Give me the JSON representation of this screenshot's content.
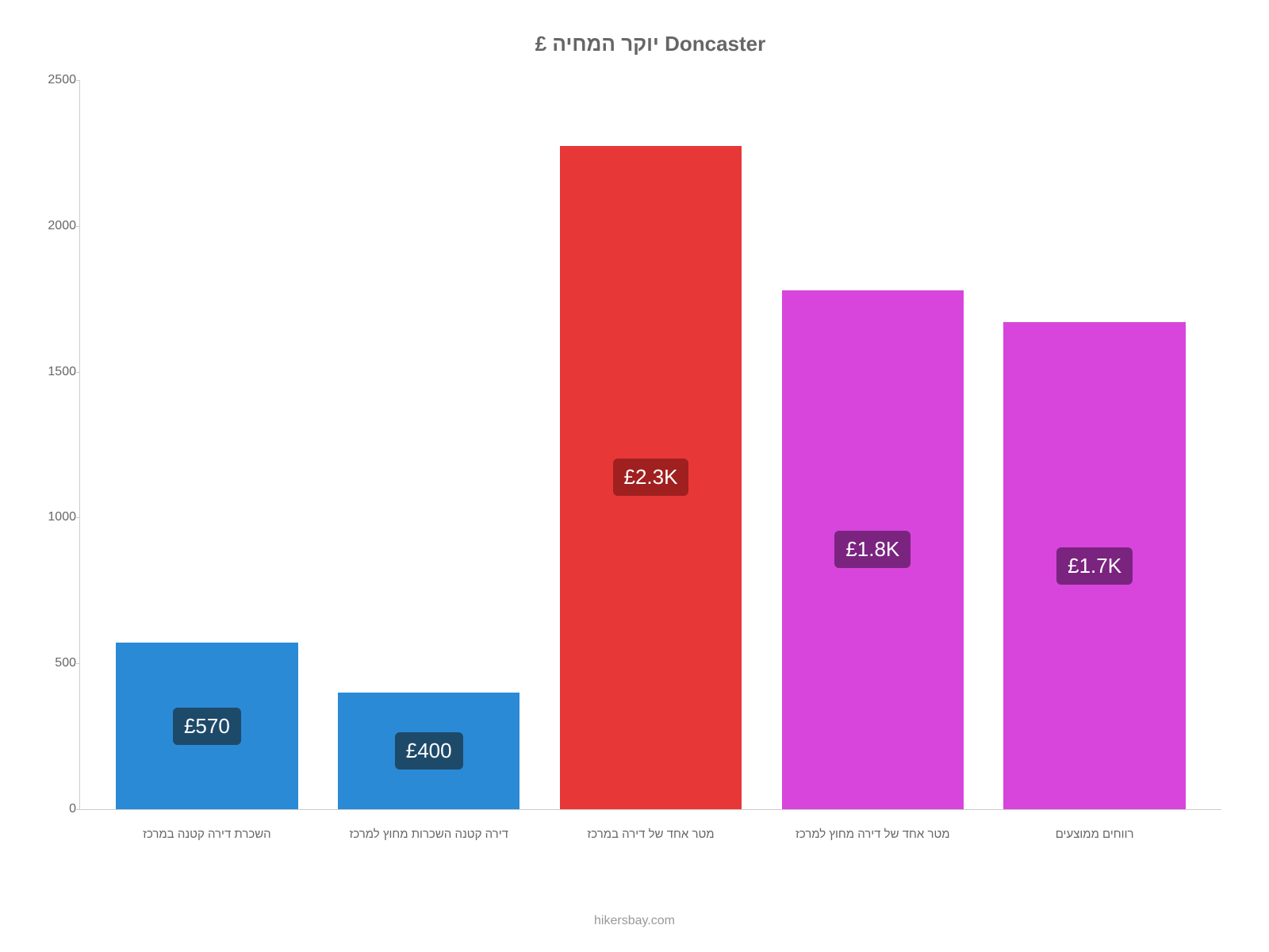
{
  "chart": {
    "type": "bar",
    "title": "£ יוקר המחיה Doncaster",
    "title_fontsize": 26,
    "title_color": "#666666",
    "background_color": "#ffffff",
    "axis_color": "#cccccc",
    "ylim": [
      0,
      2500
    ],
    "ytick_step": 500,
    "yticks": [
      0,
      500,
      1000,
      1500,
      2000,
      2500
    ],
    "ytick_fontsize": 16,
    "ytick_color": "#666666",
    "xlabel_fontsize": 15,
    "xlabel_color": "#666666",
    "bar_width": 0.82,
    "categories": [
      "השכרת דירה קטנה במרכז",
      "דירה קטנה השכרות מחוץ למרכז",
      "מטר אחד של דירה במרכז",
      "מטר אחד של דירה מחוץ למרכז",
      "רווחים ממוצעים"
    ],
    "values": [
      570,
      400,
      2275,
      1780,
      1670
    ],
    "value_labels": [
      "£570",
      "£400",
      "£2.3K",
      "£1.8K",
      "£1.7K"
    ],
    "bar_colors": [
      "#2a8ad6",
      "#2a8ad6",
      "#e83737",
      "#d845dc",
      "#d845dc"
    ],
    "label_bg_colors": [
      "#1e4a6a",
      "#1e4a6a",
      "#a02020",
      "#7a2480",
      "#7a2480"
    ],
    "label_text_color": "#ffffff",
    "label_fontsize": 26,
    "attribution": "hikersbay.com",
    "attribution_fontsize": 16,
    "attribution_color": "#999999"
  }
}
